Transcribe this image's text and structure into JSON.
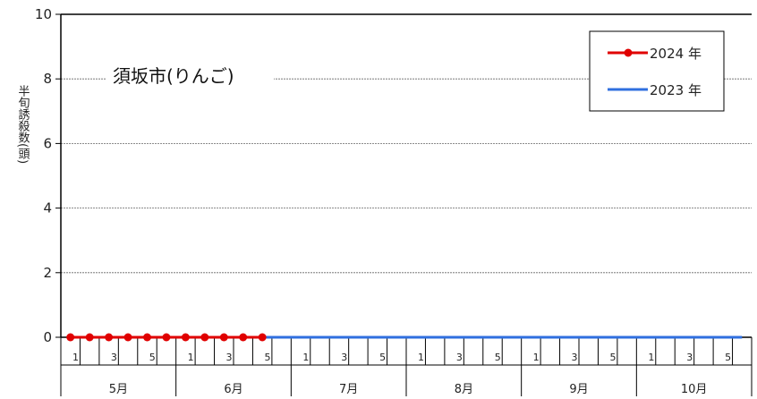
{
  "chart_data": {
    "type": "line",
    "title": "須坂市(りんご)",
    "ylabel": "半旬誘殺数(頭)",
    "ylim": [
      0,
      10
    ],
    "yticks": [
      0,
      2,
      4,
      6,
      8,
      10
    ],
    "grid": "horizontal dotted",
    "legend_position": "top-right",
    "months": [
      "5月",
      "6月",
      "7月",
      "8月",
      "9月",
      "10月"
    ],
    "pentads": [
      "1",
      "",
      "3",
      "",
      "5",
      ""
    ],
    "series": [
      {
        "name": "2024 年",
        "color": "#e00000",
        "marker": "circle",
        "x": [
          "5月-1",
          "5月-2",
          "5月-3",
          "5月-4",
          "5月-5",
          "5月-6",
          "6月-1",
          "6月-2",
          "6月-3",
          "6月-4",
          "6月-5"
        ],
        "values": [
          0,
          0,
          0,
          0,
          0,
          0,
          0,
          0,
          0,
          0,
          0
        ]
      },
      {
        "name": "2023 年",
        "color": "#2f6fdf",
        "marker": "none",
        "x": [
          "5月-1",
          "5月-2",
          "5月-3",
          "5月-4",
          "5月-5",
          "5月-6",
          "6月-1",
          "6月-2",
          "6月-3",
          "6月-4",
          "6月-5",
          "6月-6",
          "7月-1",
          "7月-2",
          "7月-3",
          "7月-4",
          "7月-5",
          "7月-6",
          "8月-1",
          "8月-2",
          "8月-3",
          "8月-4",
          "8月-5",
          "8月-6",
          "9月-1",
          "9月-2",
          "9月-3",
          "9月-4",
          "9月-5",
          "9月-6",
          "10月-1",
          "10月-2",
          "10月-3",
          "10月-4",
          "10月-5",
          "10月-6"
        ],
        "values": [
          0,
          0,
          0,
          0,
          0,
          0,
          0,
          0,
          0,
          0,
          0,
          0,
          0,
          0,
          0,
          0,
          0,
          0,
          0,
          0,
          0,
          0,
          0,
          0,
          0,
          0,
          0,
          0,
          0,
          0,
          0,
          0,
          0,
          0,
          0,
          0
        ]
      }
    ]
  }
}
